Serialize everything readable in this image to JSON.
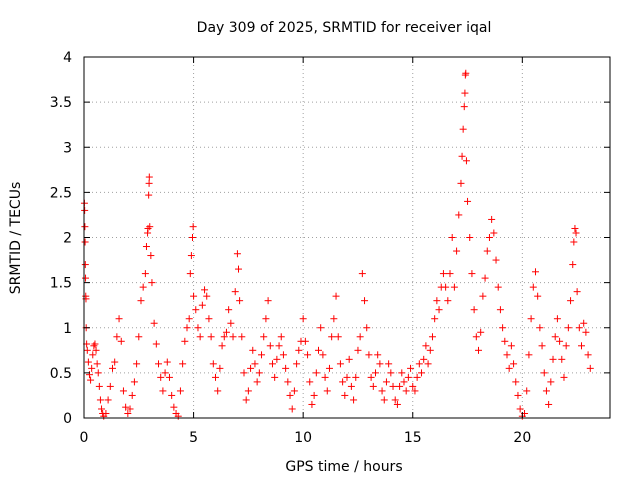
{
  "chart_data": {
    "type": "scatter",
    "title": "Day 309 of 2025, SRMTID for receiver iqal",
    "xlabel": "GPS time / hours",
    "ylabel": "SRMTID / TECUs",
    "xlim": [
      0,
      24
    ],
    "ylim": [
      0,
      4
    ],
    "x_ticks": [
      0,
      5,
      10,
      15,
      20
    ],
    "x_tick_labels": [
      "0",
      "5",
      "10",
      "15",
      "20"
    ],
    "y_ticks": [
      0,
      0.5,
      1,
      1.5,
      2,
      2.5,
      3,
      3.5,
      4
    ],
    "y_tick_labels": [
      "0",
      "0.5",
      "1",
      "1.5",
      "2",
      "2.5",
      "3",
      "3.5",
      "4"
    ],
    "grid": true,
    "marker": "+",
    "color": "#ff0000",
    "series": [
      {
        "name": "SRMTID",
        "points": [
          [
            0.02,
            2.38
          ],
          [
            0.03,
            2.3
          ],
          [
            0.04,
            2.12
          ],
          [
            0.05,
            1.95
          ],
          [
            0.06,
            1.7
          ],
          [
            0.07,
            1.55
          ],
          [
            0.08,
            1.35
          ],
          [
            0.09,
            1.32
          ],
          [
            0.1,
            1.0
          ],
          [
            0.12,
            0.82
          ],
          [
            0.15,
            0.75
          ],
          [
            0.2,
            0.62
          ],
          [
            0.25,
            0.48
          ],
          [
            0.3,
            0.42
          ],
          [
            0.35,
            0.55
          ],
          [
            0.4,
            0.7
          ],
          [
            0.45,
            0.8
          ],
          [
            0.5,
            0.82
          ],
          [
            0.55,
            0.75
          ],
          [
            0.6,
            0.6
          ],
          [
            0.65,
            0.5
          ],
          [
            0.7,
            0.35
          ],
          [
            0.75,
            0.2
          ],
          [
            0.8,
            0.1
          ],
          [
            0.85,
            0.05
          ],
          [
            0.9,
            0.02
          ],
          [
            1.0,
            0.05
          ],
          [
            1.1,
            0.2
          ],
          [
            1.2,
            0.35
          ],
          [
            1.3,
            0.55
          ],
          [
            1.4,
            0.62
          ],
          [
            1.5,
            0.9
          ],
          [
            1.6,
            1.1
          ],
          [
            1.7,
            0.85
          ],
          [
            1.8,
            0.3
          ],
          [
            1.9,
            0.12
          ],
          [
            2.0,
            0.05
          ],
          [
            2.1,
            0.1
          ],
          [
            2.2,
            0.25
          ],
          [
            2.3,
            0.4
          ],
          [
            2.4,
            0.6
          ],
          [
            2.5,
            0.9
          ],
          [
            2.6,
            1.3
          ],
          [
            2.7,
            1.45
          ],
          [
            2.8,
            1.6
          ],
          [
            2.85,
            1.9
          ],
          [
            2.9,
            2.05
          ],
          [
            2.92,
            2.1
          ],
          [
            2.95,
            2.47
          ],
          [
            2.97,
            2.6
          ],
          [
            2.98,
            2.67
          ],
          [
            3.0,
            2.12
          ],
          [
            3.05,
            1.8
          ],
          [
            3.1,
            1.5
          ],
          [
            3.2,
            1.05
          ],
          [
            3.3,
            0.82
          ],
          [
            3.4,
            0.6
          ],
          [
            3.5,
            0.45
          ],
          [
            3.6,
            0.3
          ],
          [
            3.7,
            0.5
          ],
          [
            3.8,
            0.62
          ],
          [
            3.9,
            0.45
          ],
          [
            4.0,
            0.25
          ],
          [
            4.1,
            0.12
          ],
          [
            4.2,
            0.05
          ],
          [
            4.3,
            0.02
          ],
          [
            4.4,
            0.3
          ],
          [
            4.5,
            0.6
          ],
          [
            4.6,
            0.85
          ],
          [
            4.7,
            1.0
          ],
          [
            4.8,
            1.1
          ],
          [
            4.85,
            1.6
          ],
          [
            4.9,
            1.8
          ],
          [
            4.95,
            2.0
          ],
          [
            4.98,
            2.12
          ],
          [
            5.0,
            1.35
          ],
          [
            5.1,
            1.2
          ],
          [
            5.2,
            1.0
          ],
          [
            5.3,
            0.9
          ],
          [
            5.4,
            1.25
          ],
          [
            5.5,
            1.42
          ],
          [
            5.6,
            1.35
          ],
          [
            5.7,
            1.1
          ],
          [
            5.8,
            0.9
          ],
          [
            5.9,
            0.6
          ],
          [
            6.0,
            0.45
          ],
          [
            6.1,
            0.3
          ],
          [
            6.2,
            0.55
          ],
          [
            6.3,
            0.8
          ],
          [
            6.4,
            0.9
          ],
          [
            6.5,
            0.95
          ],
          [
            6.6,
            1.2
          ],
          [
            6.7,
            1.05
          ],
          [
            6.8,
            0.9
          ],
          [
            6.9,
            1.4
          ],
          [
            7.0,
            1.82
          ],
          [
            7.05,
            1.65
          ],
          [
            7.1,
            1.3
          ],
          [
            7.2,
            0.9
          ],
          [
            7.3,
            0.5
          ],
          [
            7.4,
            0.2
          ],
          [
            7.5,
            0.3
          ],
          [
            7.6,
            0.55
          ],
          [
            7.7,
            0.75
          ],
          [
            7.8,
            0.6
          ],
          [
            7.9,
            0.4
          ],
          [
            8.0,
            0.5
          ],
          [
            8.1,
            0.7
          ],
          [
            8.2,
            0.9
          ],
          [
            8.3,
            1.1
          ],
          [
            8.4,
            1.3
          ],
          [
            8.5,
            0.8
          ],
          [
            8.6,
            0.6
          ],
          [
            8.7,
            0.45
          ],
          [
            8.8,
            0.65
          ],
          [
            8.9,
            0.8
          ],
          [
            9.0,
            0.9
          ],
          [
            9.1,
            0.7
          ],
          [
            9.2,
            0.55
          ],
          [
            9.3,
            0.4
          ],
          [
            9.4,
            0.25
          ],
          [
            9.5,
            0.1
          ],
          [
            9.6,
            0.3
          ],
          [
            9.7,
            0.6
          ],
          [
            9.8,
            0.75
          ],
          [
            9.9,
            0.85
          ],
          [
            10.0,
            1.1
          ],
          [
            10.1,
            0.85
          ],
          [
            10.2,
            0.7
          ],
          [
            10.3,
            0.4
          ],
          [
            10.4,
            0.15
          ],
          [
            10.5,
            0.25
          ],
          [
            10.6,
            0.5
          ],
          [
            10.7,
            0.75
          ],
          [
            10.8,
            1.0
          ],
          [
            10.9,
            0.7
          ],
          [
            11.0,
            0.45
          ],
          [
            11.1,
            0.3
          ],
          [
            11.2,
            0.55
          ],
          [
            11.3,
            0.9
          ],
          [
            11.4,
            1.1
          ],
          [
            11.5,
            1.35
          ],
          [
            11.6,
            0.9
          ],
          [
            11.7,
            0.6
          ],
          [
            11.8,
            0.4
          ],
          [
            11.9,
            0.25
          ],
          [
            12.0,
            0.45
          ],
          [
            12.1,
            0.65
          ],
          [
            12.2,
            0.35
          ],
          [
            12.3,
            0.2
          ],
          [
            12.4,
            0.45
          ],
          [
            12.5,
            0.75
          ],
          [
            12.6,
            0.9
          ],
          [
            12.7,
            1.6
          ],
          [
            12.8,
            1.3
          ],
          [
            12.9,
            1.0
          ],
          [
            13.0,
            0.7
          ],
          [
            13.1,
            0.45
          ],
          [
            13.2,
            0.35
          ],
          [
            13.3,
            0.5
          ],
          [
            13.4,
            0.7
          ],
          [
            13.5,
            0.6
          ],
          [
            13.6,
            0.3
          ],
          [
            13.7,
            0.2
          ],
          [
            13.8,
            0.4
          ],
          [
            13.9,
            0.6
          ],
          [
            14.0,
            0.5
          ],
          [
            14.1,
            0.35
          ],
          [
            14.2,
            0.2
          ],
          [
            14.3,
            0.15
          ],
          [
            14.4,
            0.35
          ],
          [
            14.5,
            0.5
          ],
          [
            14.6,
            0.4
          ],
          [
            14.7,
            0.3
          ],
          [
            14.8,
            0.45
          ],
          [
            14.9,
            0.55
          ],
          [
            15.0,
            0.35
          ],
          [
            15.1,
            0.3
          ],
          [
            15.2,
            0.45
          ],
          [
            15.3,
            0.6
          ],
          [
            15.4,
            0.5
          ],
          [
            15.5,
            0.65
          ],
          [
            15.6,
            0.8
          ],
          [
            15.7,
            0.6
          ],
          [
            15.8,
            0.75
          ],
          [
            15.9,
            0.9
          ],
          [
            16.0,
            1.1
          ],
          [
            16.1,
            1.3
          ],
          [
            16.2,
            1.2
          ],
          [
            16.3,
            1.45
          ],
          [
            16.4,
            1.6
          ],
          [
            16.5,
            1.45
          ],
          [
            16.6,
            1.3
          ],
          [
            16.7,
            1.6
          ],
          [
            16.8,
            2.0
          ],
          [
            16.9,
            1.45
          ],
          [
            17.0,
            1.85
          ],
          [
            17.1,
            2.25
          ],
          [
            17.2,
            2.6
          ],
          [
            17.25,
            2.9
          ],
          [
            17.3,
            3.2
          ],
          [
            17.35,
            3.45
          ],
          [
            17.38,
            3.6
          ],
          [
            17.4,
            3.8
          ],
          [
            17.42,
            3.82
          ],
          [
            17.45,
            2.85
          ],
          [
            17.5,
            2.4
          ],
          [
            17.6,
            2.0
          ],
          [
            17.7,
            1.6
          ],
          [
            17.8,
            1.2
          ],
          [
            17.9,
            0.9
          ],
          [
            18.0,
            0.75
          ],
          [
            18.1,
            0.95
          ],
          [
            18.2,
            1.35
          ],
          [
            18.3,
            1.55
          ],
          [
            18.4,
            1.85
          ],
          [
            18.5,
            2.0
          ],
          [
            18.6,
            2.2
          ],
          [
            18.7,
            2.05
          ],
          [
            18.8,
            1.75
          ],
          [
            18.9,
            1.45
          ],
          [
            19.0,
            1.2
          ],
          [
            19.1,
            1.0
          ],
          [
            19.2,
            0.85
          ],
          [
            19.3,
            0.7
          ],
          [
            19.4,
            0.55
          ],
          [
            19.5,
            0.8
          ],
          [
            19.6,
            0.6
          ],
          [
            19.7,
            0.4
          ],
          [
            19.8,
            0.25
          ],
          [
            19.9,
            0.1
          ],
          [
            20.0,
            0.02
          ],
          [
            20.1,
            0.05
          ],
          [
            20.2,
            0.3
          ],
          [
            20.3,
            0.7
          ],
          [
            20.4,
            1.1
          ],
          [
            20.5,
            1.45
          ],
          [
            20.6,
            1.62
          ],
          [
            20.7,
            1.35
          ],
          [
            20.8,
            1.0
          ],
          [
            20.9,
            0.8
          ],
          [
            21.0,
            0.5
          ],
          [
            21.1,
            0.3
          ],
          [
            21.2,
            0.15
          ],
          [
            21.3,
            0.4
          ],
          [
            21.4,
            0.65
          ],
          [
            21.5,
            0.9
          ],
          [
            21.6,
            1.1
          ],
          [
            21.7,
            0.85
          ],
          [
            21.8,
            0.65
          ],
          [
            21.9,
            0.45
          ],
          [
            22.0,
            0.8
          ],
          [
            22.1,
            1.0
          ],
          [
            22.2,
            1.3
          ],
          [
            22.3,
            1.7
          ],
          [
            22.35,
            1.95
          ],
          [
            22.4,
            2.1
          ],
          [
            22.45,
            2.05
          ],
          [
            22.5,
            1.4
          ],
          [
            22.6,
            1.0
          ],
          [
            22.7,
            0.8
          ],
          [
            22.8,
            1.05
          ],
          [
            22.9,
            0.95
          ],
          [
            23.0,
            0.7
          ],
          [
            23.1,
            0.55
          ]
        ]
      }
    ]
  }
}
